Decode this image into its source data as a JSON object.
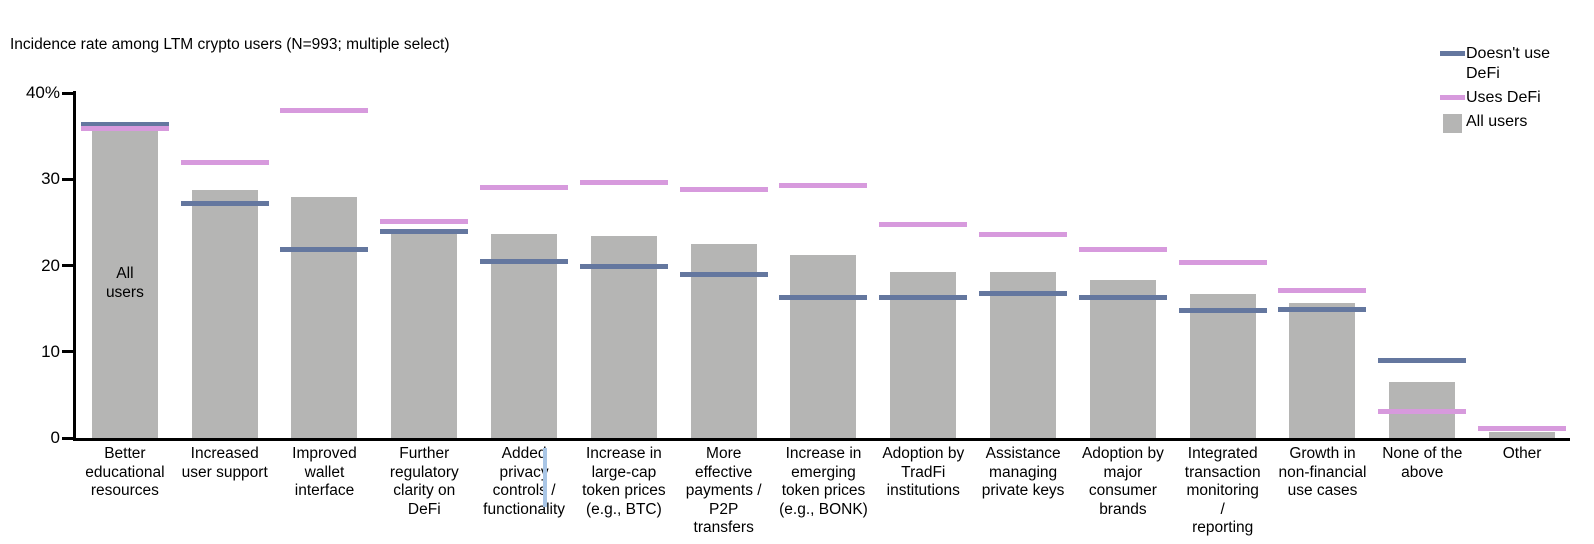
{
  "title": "Incidence rate among LTM crypto users (N=993; multiple select)",
  "colors": {
    "all_users": "#b5b5b4",
    "doesnt_use_defi": "#64779f",
    "uses_defi": "#d79add",
    "axis": "#000000",
    "cursor_artifact": "#a9c6e6"
  },
  "legend": {
    "position": "top-right",
    "items": [
      {
        "label": "Doesn't use\nDeFi",
        "swatch": "line",
        "color_key": "doesnt_use_defi"
      },
      {
        "label": "Uses DeFi",
        "swatch": "line",
        "color_key": "uses_defi"
      },
      {
        "label": "All users",
        "swatch": "square",
        "color_key": "all_users"
      }
    ]
  },
  "bar_annotation": "All\nusers",
  "chart_data": {
    "type": "bar",
    "title": "Incidence rate among LTM crypto users (N=993; multiple select)",
    "xlabel": "",
    "ylabel": "%",
    "ylim": [
      0,
      40
    ],
    "grid": false,
    "legend_position": "top-right",
    "yticks": [
      {
        "value": 40,
        "label": "40%"
      },
      {
        "value": 30,
        "label": "30"
      },
      {
        "value": 20,
        "label": "20"
      },
      {
        "value": 10,
        "label": "10"
      },
      {
        "value": 0,
        "label": "0"
      }
    ],
    "categories": [
      "Better\neducational\nresources",
      "Increased\nuser support",
      "Improved\nwallet\ninterface",
      "Further\nregulatory\nclarity on\nDeFi",
      "Added\nprivacy\ncontrols /\nfunctionality",
      "Increase in\nlarge-cap\ntoken prices\n(e.g., BTC)",
      "More\neffective\npayments /\nP2P\ntransfers",
      "Increase in\nemerging\ntoken prices\n(e.g., BONK)",
      "Adoption by\nTradFi\ninstitutions",
      "Assistance\nmanaging\nprivate keys",
      "Adoption by\nmajor\nconsumer\nbrands",
      "Integrated\ntransaction\nmonitoring\n/\nreporting",
      "Growth in\nnon-financial\nuse cases",
      "None of the\nabove",
      "Other"
    ],
    "series": [
      {
        "name": "All users",
        "mark": "bar",
        "color_key": "all_users",
        "values": [
          35.6,
          28.8,
          28.0,
          24.2,
          23.6,
          23.4,
          22.5,
          21.2,
          19.3,
          19.3,
          18.3,
          16.7,
          15.6,
          6.5,
          0.7
        ]
      },
      {
        "name": "Doesn't use DeFi",
        "mark": "dash",
        "color_key": "doesnt_use_defi",
        "values": [
          36.3,
          27.2,
          21.8,
          24.0,
          20.5,
          19.9,
          18.9,
          16.3,
          16.3,
          16.8,
          16.3,
          14.8,
          14.9,
          9.0,
          null
        ]
      },
      {
        "name": "Uses DeFi",
        "mark": "dash",
        "color_key": "uses_defi",
        "values": [
          35.9,
          32.0,
          38.0,
          25.1,
          29.0,
          29.6,
          28.8,
          29.3,
          24.7,
          23.6,
          21.9,
          20.3,
          17.1,
          3.1,
          1.1
        ]
      }
    ]
  }
}
